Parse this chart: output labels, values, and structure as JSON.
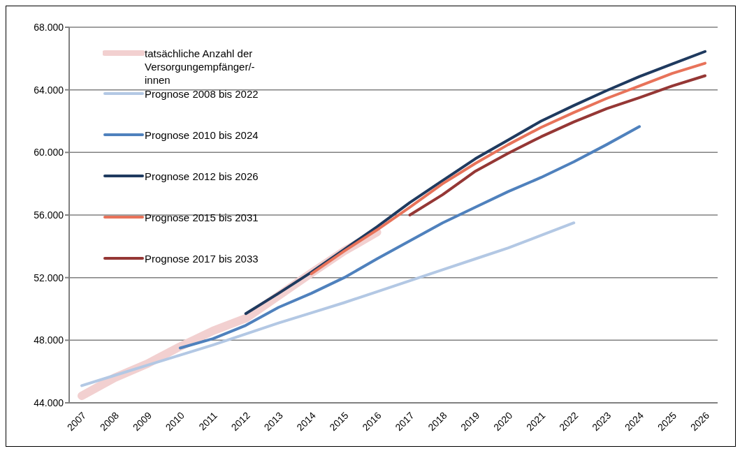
{
  "chart_data": {
    "type": "line",
    "categories": [
      "2007",
      "2008",
      "2009",
      "2010",
      "2011",
      "2012",
      "2013",
      "2014",
      "2015",
      "2016",
      "2017",
      "2018",
      "2019",
      "2020",
      "2021",
      "2022",
      "2023",
      "2024",
      "2025",
      "2026"
    ],
    "series": [
      {
        "name": "tatsächliche Anzahl der Versorgungempfänger/-innen",
        "color": "#f2d0d0",
        "values": [
          44450,
          45600,
          46500,
          47600,
          48600,
          49400,
          50850,
          52300,
          53700,
          54900,
          null,
          null,
          null,
          null,
          null,
          null,
          null,
          null,
          null,
          null
        ]
      },
      {
        "name": "Prognose 2008 bis 2022",
        "color": "#b3c8e4",
        "values": [
          45100,
          45750,
          46400,
          47050,
          47700,
          48400,
          49100,
          49750,
          50400,
          51100,
          51800,
          52500,
          53200,
          53900,
          54700,
          55500,
          null,
          null,
          null,
          null
        ]
      },
      {
        "name": "Prognose 2010 bis 2024",
        "color": "#4f81bd",
        "values": [
          null,
          null,
          null,
          47500,
          48100,
          48950,
          50100,
          51000,
          52000,
          53200,
          54350,
          55500,
          56500,
          57500,
          58400,
          59400,
          60500,
          61650,
          null,
          null
        ]
      },
      {
        "name": "Prognose 2012 bis 2026",
        "color": "#1f3a5f",
        "values": [
          null,
          null,
          null,
          null,
          null,
          49700,
          51000,
          52350,
          53800,
          55250,
          56800,
          58200,
          59600,
          60800,
          62000,
          63000,
          63950,
          64850,
          65650,
          66450
        ]
      },
      {
        "name": "Prognose 2015 bis 2031",
        "color": "#e8735a",
        "values": [
          null,
          null,
          null,
          null,
          null,
          null,
          null,
          52250,
          53700,
          55050,
          56500,
          58000,
          59300,
          60500,
          61600,
          62550,
          63450,
          64250,
          65050,
          65700
        ]
      },
      {
        "name": "Prognose 2017 bis 2033",
        "color": "#953735",
        "values": [
          null,
          null,
          null,
          null,
          null,
          null,
          null,
          null,
          null,
          null,
          56000,
          57300,
          58800,
          59950,
          61000,
          61950,
          62800,
          63500,
          64250,
          64900
        ]
      }
    ],
    "ylim": [
      44000,
      68000
    ],
    "yticks": [
      {
        "value": 44000,
        "label": "44.000"
      },
      {
        "value": 48000,
        "label": "48.000"
      },
      {
        "value": 52000,
        "label": "52.000"
      },
      {
        "value": 56000,
        "label": "56.000"
      },
      {
        "value": 60000,
        "label": "60.000"
      },
      {
        "value": 64000,
        "label": "64.000"
      },
      {
        "value": 68000,
        "label": "68.000"
      }
    ],
    "grid": "y",
    "legend": "top left",
    "marker": "none",
    "line_style": "solid"
  }
}
